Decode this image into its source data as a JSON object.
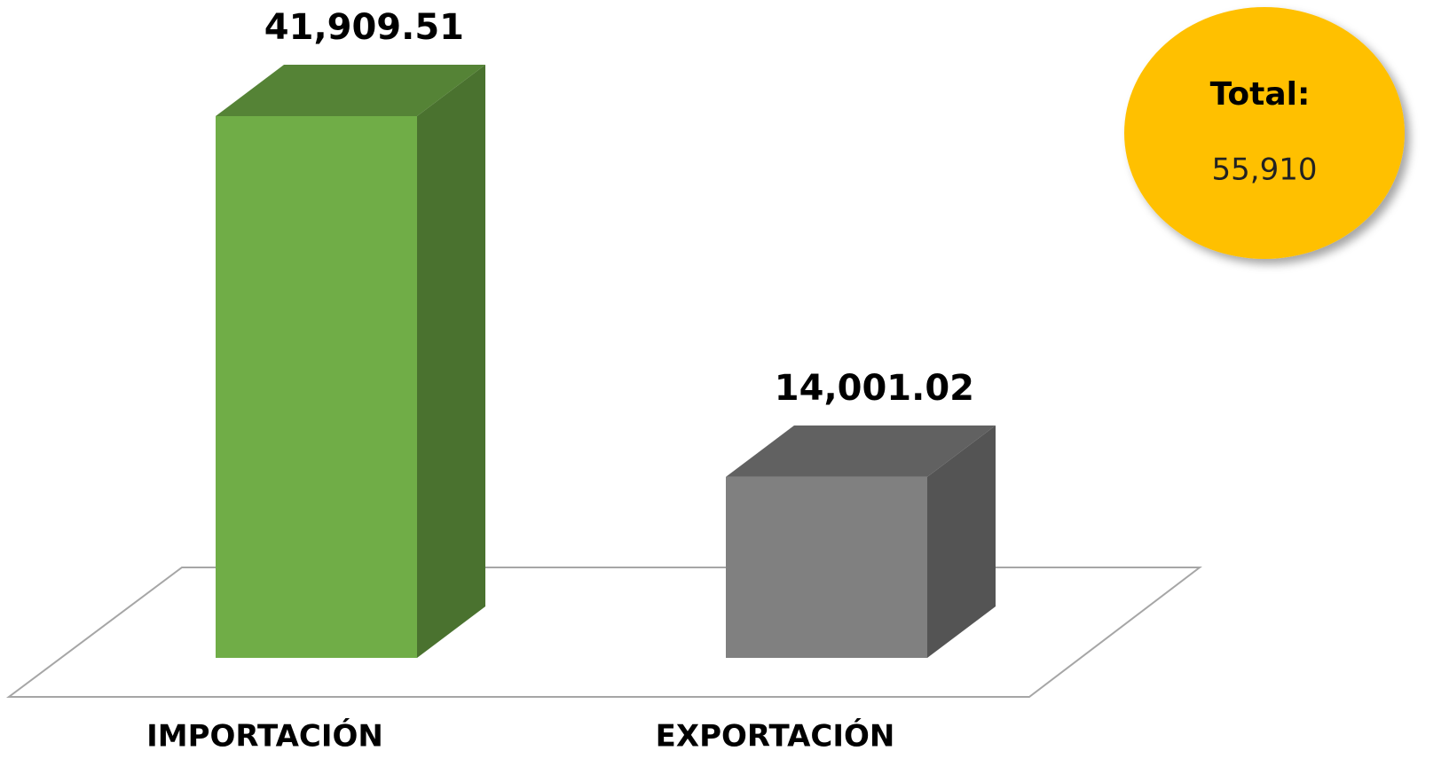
{
  "chart_data": {
    "type": "bar3d",
    "categories": [
      "IMPORTACIÓN",
      "EXPORTACIÓN"
    ],
    "values": [
      41909.51,
      14001.02
    ],
    "value_labels": [
      "41,909.51",
      "14,001.02"
    ],
    "colors": [
      "#70ad47",
      "#808080"
    ],
    "annotation": {
      "label": "Total:",
      "value": "55,910",
      "color": "#ffc000"
    }
  }
}
